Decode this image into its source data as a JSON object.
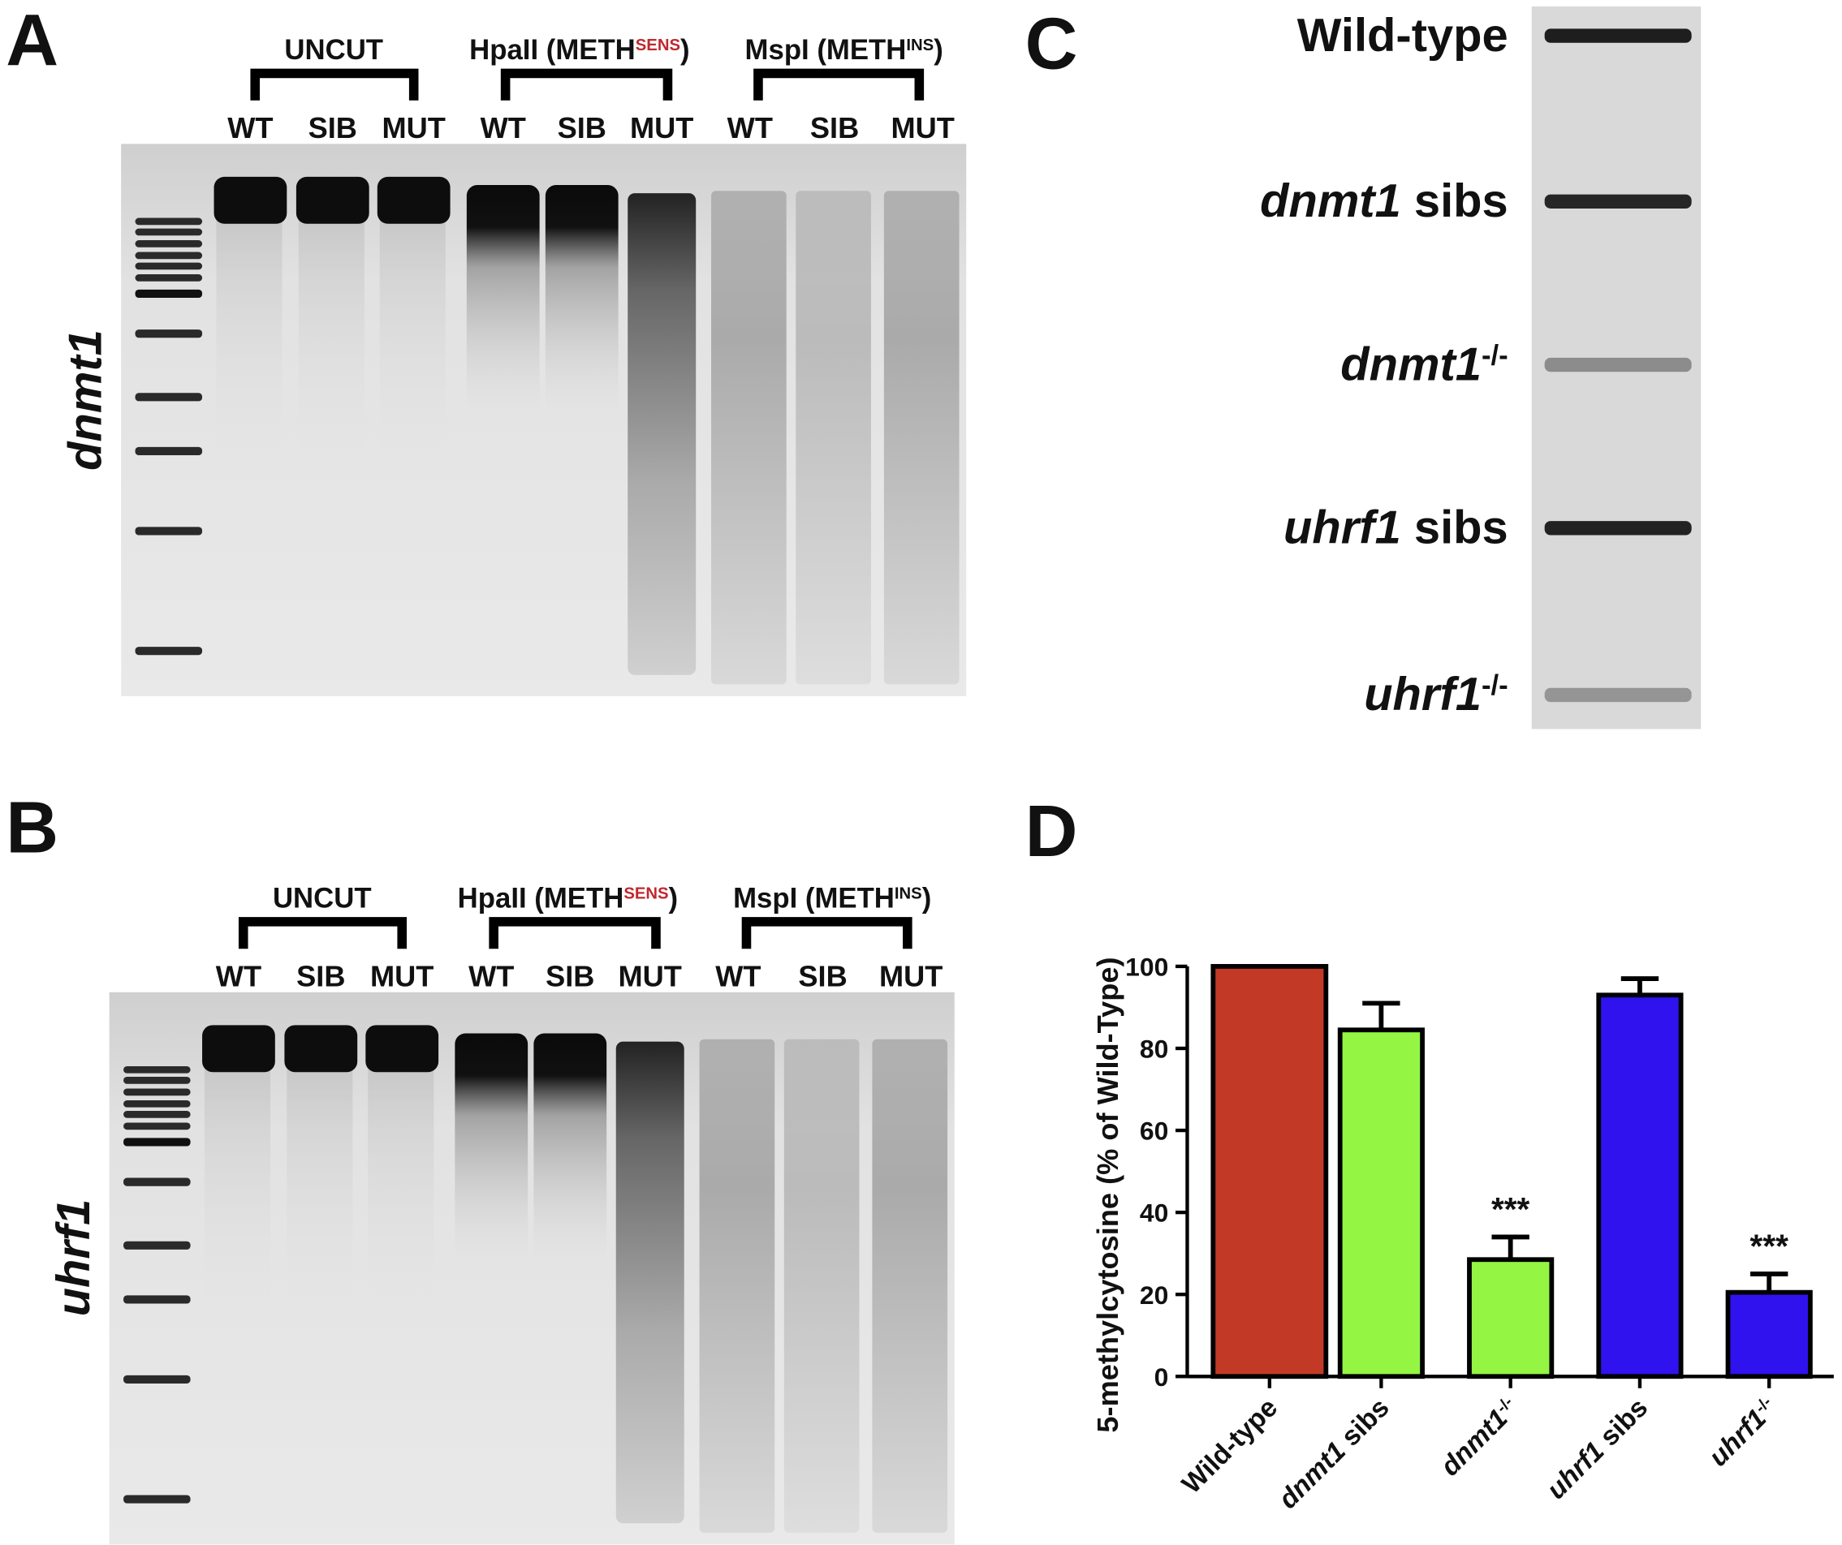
{
  "panel_labels": [
    "A",
    "B",
    "C",
    "D"
  ],
  "gels": [
    {
      "gene": "dnmt1",
      "groups": [
        {
          "name": "UNCUT"
        },
        {
          "name": "HpaII (METH",
          "superscript": "SENS",
          "closing": ")"
        },
        {
          "name": "MspI (METH",
          "superscript": "INS",
          "closing": ")"
        }
      ],
      "lanes": [
        "WT",
        "SIB",
        "MUT",
        "WT",
        "SIB",
        "MUT",
        "WT",
        "SIB",
        "MUT"
      ]
    },
    {
      "gene": "uhrf1",
      "groups": [
        {
          "name": "UNCUT"
        },
        {
          "name": "HpaII (METH",
          "superscript": "SENS",
          "closing": ")"
        },
        {
          "name": "MspI (METH",
          "superscript": "INS",
          "closing": ")"
        }
      ],
      "lanes": [
        "WT",
        "SIB",
        "MUT",
        "WT",
        "SIB",
        "MUT",
        "WT",
        "SIB",
        "MUT"
      ]
    }
  ],
  "chart_data": {
    "type": "bar",
    "ylabel": "5-methylcytosine (% of Wild-Type)",
    "categories": [
      "Wild-type",
      "dnmt1 sibs",
      "dnmt1-/-",
      "uhrf1 sibs",
      "uhrf1-/-"
    ],
    "values": [
      100,
      84.5,
      28.5,
      93,
      20.5
    ],
    "errors": [
      null,
      6.5,
      5.5,
      4,
      4.5
    ],
    "colors": [
      "#c23a26",
      "#94f542",
      "#94f542",
      "#2f12ee",
      "#2f12ee"
    ],
    "annotations": [
      null,
      null,
      "***",
      null,
      "***"
    ],
    "ylim": [
      0,
      100
    ],
    "yticks": [
      0,
      20,
      40,
      60,
      80,
      100
    ]
  }
}
